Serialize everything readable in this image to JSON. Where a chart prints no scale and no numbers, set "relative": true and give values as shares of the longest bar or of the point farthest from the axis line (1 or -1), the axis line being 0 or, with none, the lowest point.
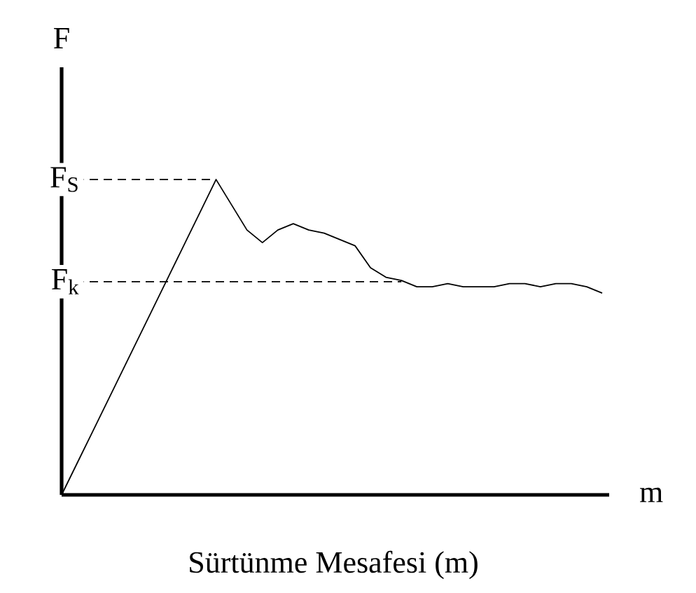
{
  "chart_data": {
    "type": "line",
    "relative": true,
    "xlabel": "m",
    "ylabel": "F",
    "annotations": [
      "Sürtünme Mesafesi (m)"
    ],
    "categories": [
      null,
      null,
      null,
      null,
      null,
      null,
      null,
      null,
      null,
      null,
      null,
      null,
      null,
      null,
      null,
      null,
      null,
      null,
      null,
      null,
      null,
      null,
      null,
      null,
      null,
      null,
      null,
      null,
      null,
      null,
      null,
      null,
      null,
      null,
      null,
      null
    ],
    "series": [
      {
        "color": "#000000",
        "values": [
          0,
          0.1,
          0.2,
          0.3,
          0.4,
          0.5,
          0.6,
          0.7,
          0.8,
          0.9,
          1.0,
          0.92,
          0.84,
          0.8,
          0.84,
          0.86,
          0.84,
          0.83,
          0.81,
          0.79,
          0.72,
          0.69,
          0.68,
          0.66,
          0.66,
          0.67,
          0.66,
          0.66,
          0.66,
          0.67,
          0.67,
          0.66,
          0.67,
          0.67,
          0.66,
          0.64
        ]
      }
    ],
    "ref_lines": [
      {
        "axis": "y",
        "value": 1.0,
        "label": "F$_{S}$",
        "line_style": "dashed",
        "color": "#000000"
      },
      {
        "axis": "y",
        "value": 0.676,
        "label": "F$_{k}$",
        "line_style": "dashed",
        "color": "#000000"
      }
    ],
    "line_style": "solid",
    "marker": "none"
  }
}
